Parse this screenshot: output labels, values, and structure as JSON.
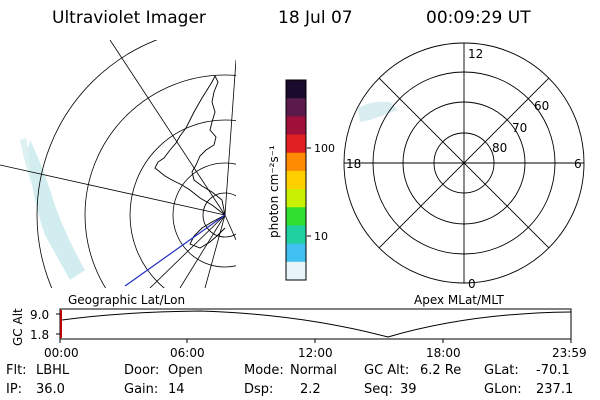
{
  "header": {
    "instrument": "Ultraviolet Imager",
    "date": "18 Jul 07",
    "time": "00:09:29 UT"
  },
  "colorbar": {
    "unit_label": "photon cm⁻²s⁻¹",
    "ticks": [
      {
        "label": "100",
        "value": 100
      },
      {
        "label": "10",
        "value": 10
      }
    ],
    "colors": [
      "#1a0a2e",
      "#5a1a4a",
      "#a0103a",
      "#e02020",
      "#ff8c00",
      "#ffd000",
      "#c8f000",
      "#30e030",
      "#20d0a0",
      "#40c0f0",
      "#e8f4f8"
    ]
  },
  "left_map": {
    "caption": "Geographic Lat/Lon"
  },
  "right_map": {
    "caption": "Apex MLat/MLT",
    "mlt_labels": [
      {
        "name": "mlt-12-label",
        "text": "12"
      },
      {
        "name": "mlt-18-label",
        "text": "18"
      },
      {
        "name": "mlt-6-label",
        "text": "6"
      },
      {
        "name": "mlt-0-label",
        "text": "0"
      }
    ],
    "lat_labels": [
      {
        "name": "lat-60-label",
        "text": "60"
      },
      {
        "name": "lat-70-label",
        "text": "70"
      },
      {
        "name": "lat-80-label",
        "text": "80"
      }
    ]
  },
  "timeline": {
    "axis_label": "GC Alt",
    "y_ticks": [
      "9.0",
      "1.8"
    ],
    "x_ticks": [
      "00:00",
      "06:00",
      "12:00",
      "18:00",
      "23:59"
    ]
  },
  "status": {
    "filter": {
      "label": "Flt:",
      "value": "LBHL"
    },
    "ip": {
      "label": "IP:",
      "value": "36.0"
    },
    "door": {
      "label": "Door:",
      "value": "Open"
    },
    "gain": {
      "label": "Gain:",
      "value": "14"
    },
    "mode": {
      "label": "Mode:",
      "value": "Normal"
    },
    "dsp": {
      "label": "Dsp:",
      "value": "2.2"
    },
    "gc_alt": {
      "label": "GC Alt:",
      "value": "6.2 Re"
    },
    "seq": {
      "label": "Seq:",
      "value": "39"
    },
    "glat": {
      "label": "GLat:",
      "value": "-70.1"
    },
    "glon": {
      "label": "GLon:",
      "value": "237.1"
    }
  }
}
